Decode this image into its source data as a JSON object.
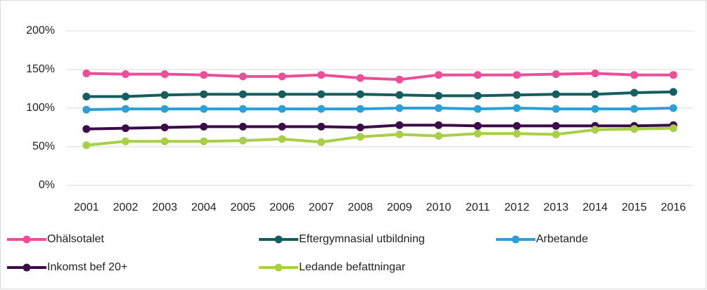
{
  "chart_data": {
    "type": "line",
    "categories": [
      "2001",
      "2002",
      "2003",
      "2004",
      "2005",
      "2006",
      "2007",
      "2008",
      "2009",
      "2010",
      "2011",
      "2012",
      "2013",
      "2014",
      "2015",
      "2016"
    ],
    "series": [
      {
        "name": "Ohälsotalet",
        "color": "#ee4d97",
        "values": [
          145,
          144,
          144,
          143,
          141,
          141,
          143,
          139,
          137,
          143,
          143,
          143,
          144,
          145,
          143,
          143
        ]
      },
      {
        "name": "Eftergymnasial utbildning",
        "color": "#155e60",
        "values": [
          115,
          115,
          117,
          118,
          118,
          118,
          118,
          118,
          117,
          116,
          116,
          117,
          118,
          118,
          120,
          121
        ]
      },
      {
        "name": "Arbetande",
        "color": "#2b9fd8",
        "values": [
          98,
          99,
          99,
          99,
          99,
          99,
          99,
          99,
          100,
          100,
          99,
          100,
          99,
          99,
          99,
          100
        ]
      },
      {
        "name": "Inkomst bef 20+",
        "color": "#3d0b4a",
        "values": [
          73,
          74,
          75,
          76,
          76,
          76,
          76,
          75,
          78,
          78,
          77,
          77,
          77,
          77,
          77,
          78
        ]
      },
      {
        "name": "Ledande befattningar",
        "color": "#a8cf45",
        "values": [
          52,
          57,
          57,
          57,
          58,
          60,
          56,
          63,
          66,
          64,
          67,
          67,
          66,
          72,
          73,
          74
        ]
      }
    ],
    "ylim": [
      0,
      200
    ],
    "yticks": [
      {
        "value": 0,
        "label": "0%"
      },
      {
        "value": 50,
        "label": "50%"
      },
      {
        "value": 100,
        "label": "100%"
      },
      {
        "value": 150,
        "label": "150%"
      },
      {
        "value": 200,
        "label": "200%"
      }
    ],
    "grid": true
  }
}
